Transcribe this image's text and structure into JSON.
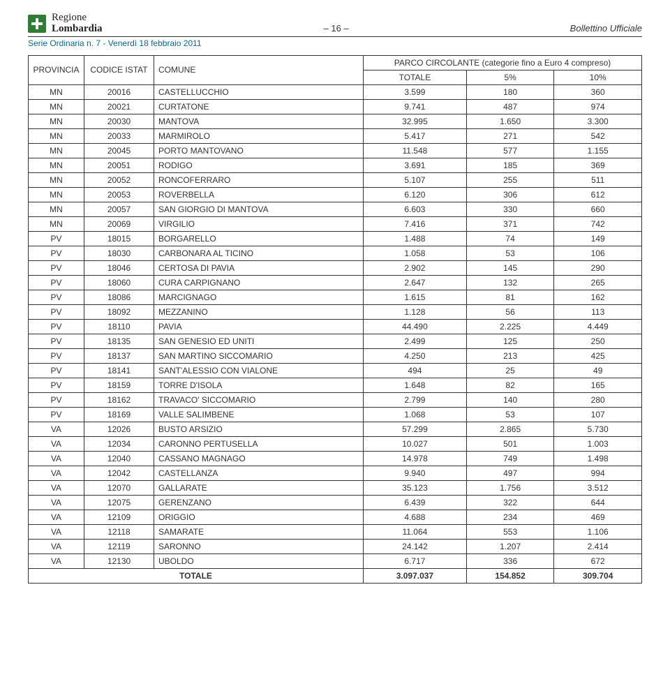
{
  "header": {
    "region_line1": "Regione",
    "region_line2": "Lombardia",
    "page_indicator": "– 16 –",
    "right_title": "Bollettino Ufficiale",
    "subhead": "Serie Ordinaria n. 7 - Venerdì 18 febbraio 2011",
    "subhead_color": "#00679a"
  },
  "table": {
    "border_color": "#333333",
    "font_size": 12,
    "header": {
      "col_provincia": "PROVINCIA",
      "col_codice": "CODICE ISTAT",
      "col_comune": "COMUNE",
      "group_header": "PARCO CIRCOLANTE (categorie fino a Euro 4 compreso)",
      "col_totale": "TOTALE",
      "col_5pct": "5%",
      "col_10pct": "10%"
    },
    "columns": [
      "PROVINCIA",
      "CODICE ISTAT",
      "COMUNE",
      "TOTALE",
      "5%",
      "10%"
    ],
    "rows": [
      [
        "MN",
        "20016",
        "CASTELLUCCHIO",
        "3.599",
        "180",
        "360"
      ],
      [
        "MN",
        "20021",
        "CURTATONE",
        "9.741",
        "487",
        "974"
      ],
      [
        "MN",
        "20030",
        "MANTOVA",
        "32.995",
        "1.650",
        "3.300"
      ],
      [
        "MN",
        "20033",
        "MARMIROLO",
        "5.417",
        "271",
        "542"
      ],
      [
        "MN",
        "20045",
        "PORTO MANTOVANO",
        "11.548",
        "577",
        "1.155"
      ],
      [
        "MN",
        "20051",
        "RODIGO",
        "3.691",
        "185",
        "369"
      ],
      [
        "MN",
        "20052",
        "RONCOFERRARO",
        "5.107",
        "255",
        "511"
      ],
      [
        "MN",
        "20053",
        "ROVERBELLA",
        "6.120",
        "306",
        "612"
      ],
      [
        "MN",
        "20057",
        "SAN GIORGIO DI MANTOVA",
        "6.603",
        "330",
        "660"
      ],
      [
        "MN",
        "20069",
        "VIRGILIO",
        "7.416",
        "371",
        "742"
      ],
      [
        "PV",
        "18015",
        "BORGARELLO",
        "1.488",
        "74",
        "149"
      ],
      [
        "PV",
        "18030",
        "CARBONARA AL TICINO",
        "1.058",
        "53",
        "106"
      ],
      [
        "PV",
        "18046",
        "CERTOSA DI PAVIA",
        "2.902",
        "145",
        "290"
      ],
      [
        "PV",
        "18060",
        "CURA CARPIGNANO",
        "2.647",
        "132",
        "265"
      ],
      [
        "PV",
        "18086",
        "MARCIGNAGO",
        "1.615",
        "81",
        "162"
      ],
      [
        "PV",
        "18092",
        "MEZZANINO",
        "1.128",
        "56",
        "113"
      ],
      [
        "PV",
        "18110",
        "PAVIA",
        "44.490",
        "2.225",
        "4.449"
      ],
      [
        "PV",
        "18135",
        "SAN GENESIO ED UNITI",
        "2.499",
        "125",
        "250"
      ],
      [
        "PV",
        "18137",
        "SAN MARTINO SICCOMARIO",
        "4.250",
        "213",
        "425"
      ],
      [
        "PV",
        "18141",
        "SANT'ALESSIO CON VIALONE",
        "494",
        "25",
        "49"
      ],
      [
        "PV",
        "18159",
        "TORRE D'ISOLA",
        "1.648",
        "82",
        "165"
      ],
      [
        "PV",
        "18162",
        "TRAVACO' SICCOMARIO",
        "2.799",
        "140",
        "280"
      ],
      [
        "PV",
        "18169",
        "VALLE SALIMBENE",
        "1.068",
        "53",
        "107"
      ],
      [
        "VA",
        "12026",
        "BUSTO ARSIZIO",
        "57.299",
        "2.865",
        "5.730"
      ],
      [
        "VA",
        "12034",
        "CARONNO PERTUSELLA",
        "10.027",
        "501",
        "1.003"
      ],
      [
        "VA",
        "12040",
        "CASSANO MAGNAGO",
        "14.978",
        "749",
        "1.498"
      ],
      [
        "VA",
        "12042",
        "CASTELLANZA",
        "9.940",
        "497",
        "994"
      ],
      [
        "VA",
        "12070",
        "GALLARATE",
        "35.123",
        "1.756",
        "3.512"
      ],
      [
        "VA",
        "12075",
        "GERENZANO",
        "6.439",
        "322",
        "644"
      ],
      [
        "VA",
        "12109",
        "ORIGGIO",
        "4.688",
        "234",
        "469"
      ],
      [
        "VA",
        "12118",
        "SAMARATE",
        "11.064",
        "553",
        "1.106"
      ],
      [
        "VA",
        "12119",
        "SARONNO",
        "24.142",
        "1.207",
        "2.414"
      ],
      [
        "VA",
        "12130",
        "UBOLDO",
        "6.717",
        "336",
        "672"
      ]
    ],
    "total_row": {
      "label": "TOTALE",
      "totale": "3.097.037",
      "pct5": "154.852",
      "pct10": "309.704"
    }
  }
}
